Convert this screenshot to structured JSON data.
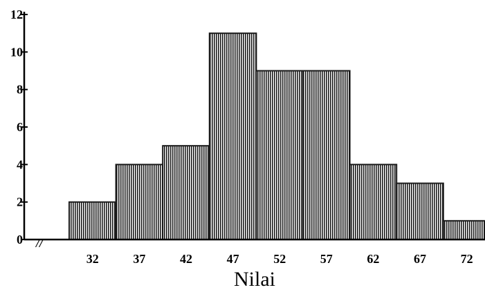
{
  "chart_data": {
    "type": "bar",
    "title": "",
    "xlabel": "Nilai",
    "ylabel": "",
    "categories": [
      "32",
      "37",
      "42",
      "47",
      "52",
      "57",
      "62",
      "67",
      "72"
    ],
    "values": [
      2,
      4,
      5,
      11,
      9,
      9,
      4,
      3,
      1
    ],
    "ylim": [
      0,
      12
    ],
    "yticks": [
      "0",
      "2",
      "4",
      "6",
      "8",
      "10",
      "12"
    ],
    "axis_break_symbol": "//",
    "grid": false,
    "bar_color": "#1a1a1a"
  }
}
